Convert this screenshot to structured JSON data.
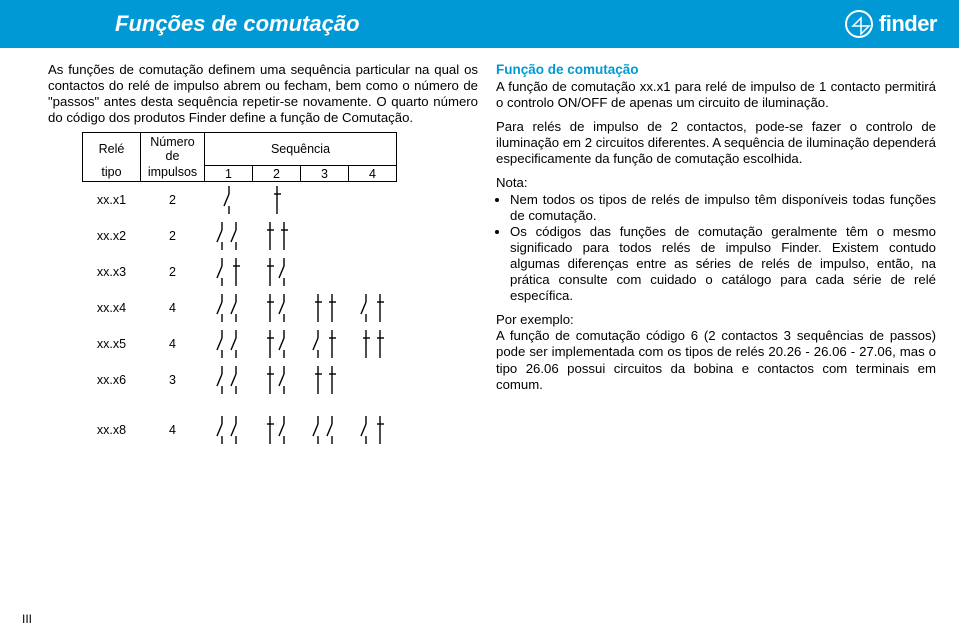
{
  "banner": {
    "title": "Funções de comutação",
    "brand": "finder"
  },
  "intro": {
    "p1": "As funções de comutação definem uma sequência particular na qual os contactos do relé de impulso abrem ou fecham, bem como o número de \"passos\" antes desta sequência repetir-se novamente. O quarto número do código dos produtos Finder define a função de Comutação."
  },
  "table": {
    "head": {
      "rele1": "Relé",
      "rele2": "tipo",
      "num1": "Número de",
      "num2": "impulsos",
      "seq": "Sequência",
      "steps": [
        "1",
        "2",
        "3",
        "4"
      ]
    },
    "rows": [
      {
        "type": "xx.x1",
        "imp": "2",
        "cells": [
          [
            [
              "o"
            ]
          ],
          [
            [
              "c"
            ]
          ],
          null,
          null
        ]
      },
      {
        "type": "xx.x2",
        "imp": "2",
        "cells": [
          [
            [
              "o",
              "o"
            ]
          ],
          [
            [
              "c",
              "c"
            ]
          ],
          null,
          null
        ]
      },
      {
        "type": "xx.x3",
        "imp": "2",
        "cells": [
          [
            [
              "o",
              "c"
            ]
          ],
          [
            [
              "c",
              "o"
            ]
          ],
          null,
          null
        ]
      },
      {
        "type": "xx.x4",
        "imp": "4",
        "cells": [
          [
            [
              "o",
              "o"
            ]
          ],
          [
            [
              "c",
              "o"
            ]
          ],
          [
            [
              "c",
              "c"
            ]
          ],
          [
            [
              "o",
              "c"
            ]
          ]
        ]
      },
      {
        "type": "xx.x5",
        "imp": "4",
        "cells": [
          [
            [
              "o",
              "o"
            ]
          ],
          [
            [
              "c",
              "o"
            ]
          ],
          [
            [
              "o",
              "c"
            ]
          ],
          [
            [
              "c",
              "c"
            ]
          ]
        ]
      },
      {
        "type": "xx.x6",
        "imp": "3",
        "cells": [
          [
            [
              "o",
              "o"
            ]
          ],
          [
            [
              "c",
              "o"
            ]
          ],
          [
            [
              "c",
              "c"
            ]
          ],
          null
        ]
      }
    ],
    "rowFinal": {
      "type": "xx.x8",
      "imp": "4",
      "cells": [
        [
          [
            "o",
            "o"
          ]
        ],
        [
          [
            "c",
            "o"
          ]
        ],
        [
          [
            "o",
            "o"
          ]
        ],
        [
          [
            "o",
            "c"
          ]
        ]
      ]
    }
  },
  "right": {
    "heading": "Função de comutação",
    "p1": "A função de comutação xx.x1 para relé de impulso de 1 contacto permitirá o controlo ON/OFF de apenas um circuito de iluminação.",
    "p2": "Para relés de impulso de 2 contactos, pode-se fazer o controlo de iluminação em 2 circuitos diferentes. A sequência de iluminação dependerá especificamente da função de comutação escolhida.",
    "nota_label": "Nota:",
    "bullets": [
      "Nem todos os tipos de relés de impulso têm disponíveis todas funções de comutação.",
      "Os códigos das funções de comutação geralmente têm o mesmo significado para todos relés de impulso Finder. Existem contudo algumas diferenças entre as séries de relés de impulso, então, na prática consulte com cuidado o catálogo para cada série de relé específica."
    ],
    "p3_label": "Por exemplo:",
    "p3": "A função de comutação código 6 (2 contactos 3 sequências de passos) pode ser implementada com os tipos de relés 20.26 - 26.06 - 27.06, mas o tipo 26.06 possui circuitos da bobina e contactos com terminais em comum."
  },
  "footer": "III",
  "symbolStyle": {
    "stroke": "#000000",
    "strokeWidth": 1.4
  }
}
